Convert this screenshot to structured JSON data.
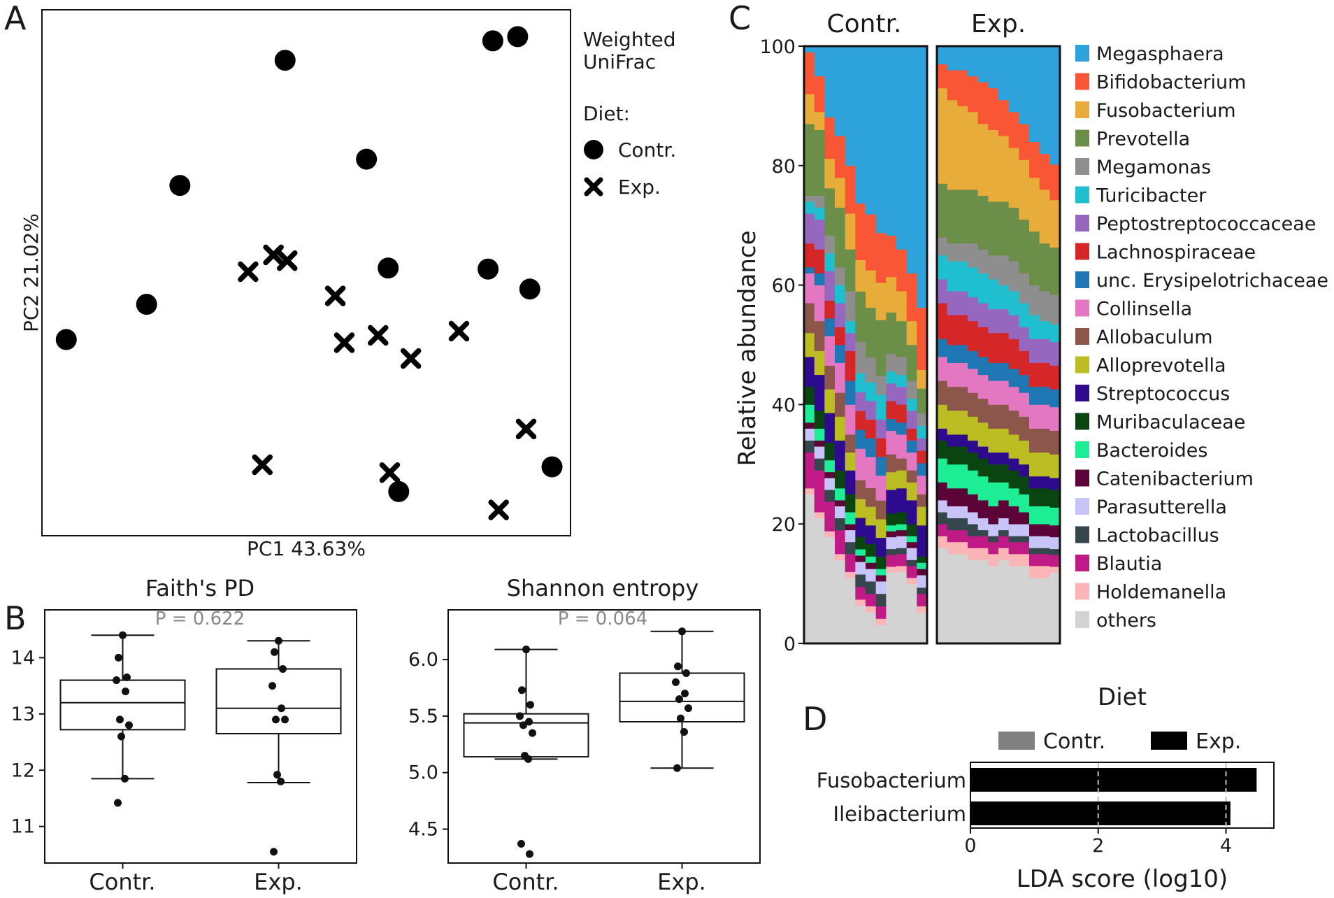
{
  "panel_letters": [
    "A",
    "B",
    "C",
    "D"
  ],
  "chart_data": [
    {
      "id": "pcoa",
      "type": "scatter",
      "title": "Weighted UniFrac",
      "xlabel": "PC1 43.63%",
      "ylabel": "PC2 21.02%",
      "legend": {
        "title": "Diet:",
        "entries": [
          "Contr.",
          "Exp."
        ],
        "title_lines": [
          "Weighted",
          "UniFrac"
        ]
      },
      "xlim": [
        0,
        100
      ],
      "ylim": [
        0,
        100
      ],
      "series": [
        {
          "name": "Contr.",
          "marker": "circle",
          "points": [
            [
              4.6,
              37.3
            ],
            [
              19.8,
              44.0
            ],
            [
              26.1,
              66.6
            ],
            [
              46.0,
              90.4
            ],
            [
              61.4,
              71.6
            ],
            [
              65.5,
              50.9
            ],
            [
              67.5,
              8.4
            ],
            [
              84.4,
              50.7
            ],
            [
              85.3,
              94.1
            ],
            [
              90.0,
              94.9
            ],
            [
              92.3,
              46.9
            ],
            [
              96.5,
              13.1
            ]
          ]
        },
        {
          "name": "Exp.",
          "marker": "x",
          "points": [
            [
              39.0,
              50.2
            ],
            [
              43.8,
              53.4
            ],
            [
              46.4,
              52.3
            ],
            [
              55.5,
              45.6
            ],
            [
              57.2,
              36.7
            ],
            [
              63.6,
              38.1
            ],
            [
              41.7,
              13.5
            ],
            [
              65.8,
              12.0
            ],
            [
              69.8,
              33.7
            ],
            [
              78.9,
              38.9
            ],
            [
              91.6,
              20.3
            ],
            [
              86.4,
              4.9
            ]
          ]
        }
      ]
    },
    {
      "id": "faith",
      "type": "box",
      "title": "Faith's PD",
      "pvalue": "P = 0.622",
      "categories": [
        "Contr.",
        "Exp."
      ],
      "ylim": [
        10.35,
        14.85
      ],
      "yticks": [
        11,
        12,
        13,
        14
      ],
      "boxes": [
        {
          "whisker_low": 11.85,
          "q1": 12.72,
          "median": 13.2,
          "q3": 13.6,
          "whisker_high": 14.4,
          "points": [
            14.4,
            14.0,
            13.65,
            13.6,
            13.4,
            12.9,
            12.8,
            12.6,
            11.85,
            11.42
          ]
        },
        {
          "whisker_low": 11.78,
          "q1": 12.65,
          "median": 13.1,
          "q3": 13.8,
          "whisker_high": 14.3,
          "points": [
            14.3,
            14.1,
            13.8,
            13.5,
            13.1,
            12.9,
            12.9,
            11.92,
            11.8,
            10.55
          ]
        }
      ]
    },
    {
      "id": "shannon",
      "type": "box",
      "title": "Shannon entropy",
      "pvalue": "P = 0.064",
      "categories": [
        "Contr.",
        "Exp."
      ],
      "ylim": [
        4.2,
        6.44
      ],
      "yticks": [
        4.5,
        5.0,
        5.5,
        6.0
      ],
      "boxes": [
        {
          "whisker_low": 5.12,
          "q1": 5.14,
          "median": 5.44,
          "q3": 5.52,
          "whisker_high": 6.09,
          "points": [
            6.09,
            5.73,
            5.6,
            5.5,
            5.45,
            5.42,
            5.35,
            5.15,
            5.12,
            4.37,
            4.28
          ]
        },
        {
          "whisker_low": 5.04,
          "q1": 5.45,
          "median": 5.63,
          "q3": 5.88,
          "whisker_high": 6.25,
          "points": [
            6.25,
            5.94,
            5.88,
            5.8,
            5.7,
            5.65,
            5.57,
            5.48,
            5.36,
            5.04
          ]
        }
      ]
    },
    {
      "id": "taxa",
      "type": "stacked_bar",
      "ylabel": "Relative abundance",
      "ylim": [
        0,
        100
      ],
      "yticks": [
        0,
        20,
        40,
        60,
        80,
        100
      ],
      "groups": [
        "Contr.",
        "Exp."
      ],
      "taxa": [
        {
          "name": "Megasphaera",
          "color": "#2ea3db"
        },
        {
          "name": "Bifidobacterium",
          "color": "#f85634"
        },
        {
          "name": "Fusobacterium",
          "color": "#e8ac3a"
        },
        {
          "name": "Prevotella",
          "color": "#6b8f48"
        },
        {
          "name": "Megamonas",
          "color": "#8e8e8e"
        },
        {
          "name": "Turicibacter",
          "color": "#1fbfd0"
        },
        {
          "name": "Peptostreptococcaceae",
          "color": "#9567be"
        },
        {
          "name": "Lachnospiraceae",
          "color": "#d62728"
        },
        {
          "name": "unc. Erysipelotrichaceae",
          "color": "#1f77b4"
        },
        {
          "name": "Collinsella",
          "color": "#e377c2"
        },
        {
          "name": "Allobaculum",
          "color": "#8c564b"
        },
        {
          "name": "Alloprevotella",
          "color": "#bcbd22"
        },
        {
          "name": "Streptococcus",
          "color": "#2d0a8e"
        },
        {
          "name": "Muribaculaceae",
          "color": "#0a4410"
        },
        {
          "name": "Bacteroides",
          "color": "#1ded95"
        },
        {
          "name": "Catenibacterium",
          "color": "#5c0437"
        },
        {
          "name": "Parasutterella",
          "color": "#c9c4f7"
        },
        {
          "name": "Lactobacillus",
          "color": "#35464c"
        },
        {
          "name": "Blautia",
          "color": "#bf1a85"
        },
        {
          "name": "Holdemanella",
          "color": "#fbb5b6"
        },
        {
          "name": "others",
          "color": "#d3d3d3"
        }
      ],
      "samples": {
        "Contr.": [
          [
            1,
            7,
            5,
            12,
            1,
            2,
            5,
            4,
            1,
            5,
            5,
            4,
            5,
            3,
            3,
            1,
            2,
            2,
            6,
            1,
            25
          ],
          [
            5,
            6,
            3,
            11,
            2,
            2,
            5,
            4,
            2,
            6,
            5,
            4,
            6,
            3,
            2,
            1,
            2,
            2,
            7,
            1,
            21
          ],
          [
            12,
            7,
            5,
            8,
            3,
            3,
            5,
            3,
            3,
            5,
            4,
            4,
            5,
            3,
            2,
            1,
            2,
            2,
            5,
            1,
            18
          ],
          [
            15,
            7,
            5,
            10,
            3,
            3,
            4,
            3,
            3,
            5,
            4,
            4,
            5,
            3,
            2,
            1,
            2,
            2,
            4,
            1,
            14
          ],
          [
            20,
            8,
            6,
            7,
            5,
            2,
            3,
            5,
            4,
            5,
            3,
            3,
            4,
            3,
            2,
            1,
            2,
            2,
            3,
            1,
            11
          ],
          [
            25,
            9,
            5,
            8,
            5,
            3,
            3,
            3,
            3,
            5,
            3,
            3,
            3,
            2,
            1,
            1,
            2,
            2,
            2,
            1,
            6
          ],
          [
            27,
            9,
            6,
            8,
            4,
            3,
            3,
            3,
            3,
            5,
            3,
            3,
            3,
            2,
            1,
            1,
            2,
            2,
            2,
            1,
            5
          ],
          [
            30,
            8,
            6,
            9,
            3,
            4,
            3,
            3,
            3,
            4,
            3,
            3,
            3,
            2,
            1,
            1,
            2,
            2,
            2,
            1,
            3
          ],
          [
            32,
            7,
            6,
            7,
            3,
            2,
            3,
            3,
            2,
            4,
            3,
            3,
            4,
            2,
            1,
            1,
            2,
            1,
            2,
            1,
            12
          ],
          [
            34,
            7,
            5,
            6,
            3,
            2,
            3,
            3,
            2,
            4,
            2,
            3,
            4,
            2,
            1,
            1,
            2,
            1,
            2,
            1,
            12
          ],
          [
            38,
            8,
            4,
            6,
            3,
            2,
            3,
            2,
            2,
            3,
            2,
            3,
            4,
            2,
            1,
            1,
            2,
            1,
            2,
            1,
            10
          ],
          [
            42,
            10,
            3,
            4,
            2,
            2,
            2,
            2,
            2,
            3,
            2,
            3,
            5,
            1,
            1,
            1,
            2,
            1,
            2,
            1,
            5
          ]
        ],
        "Exp.": [
          [
            3,
            4,
            16,
            9,
            3,
            4,
            4,
            6,
            3,
            4,
            4,
            4,
            2,
            3,
            4,
            3,
            2,
            2,
            2,
            2,
            16
          ],
          [
            4,
            5,
            15,
            9,
            3,
            5,
            4,
            5,
            3,
            4,
            4,
            4,
            2,
            3,
            4,
            3,
            2,
            2,
            2,
            2,
            15
          ],
          [
            4,
            6,
            14,
            9,
            3,
            5,
            4,
            5,
            3,
            4,
            4,
            4,
            2,
            3,
            4,
            3,
            2,
            2,
            2,
            2,
            15
          ],
          [
            5,
            6,
            13,
            9,
            4,
            5,
            4,
            5,
            3,
            4,
            4,
            4,
            2,
            3,
            4,
            3,
            2,
            2,
            2,
            2,
            14
          ],
          [
            6,
            7,
            12,
            9,
            4,
            5,
            4,
            5,
            3,
            4,
            4,
            4,
            2,
            3,
            4,
            3,
            2,
            1,
            2,
            2,
            14
          ],
          [
            7,
            7,
            12,
            9,
            4,
            5,
            4,
            5,
            3,
            4,
            4,
            4,
            2,
            3,
            4,
            3,
            2,
            1,
            2,
            2,
            13
          ],
          [
            9,
            6,
            11,
            9,
            5,
            4,
            4,
            5,
            3,
            4,
            4,
            4,
            2,
            3,
            3,
            3,
            2,
            1,
            2,
            2,
            14
          ],
          [
            11,
            6,
            10,
            9,
            5,
            4,
            4,
            5,
            3,
            4,
            4,
            4,
            2,
            3,
            3,
            3,
            2,
            1,
            2,
            2,
            13
          ],
          [
            13,
            6,
            10,
            9,
            5,
            4,
            4,
            4,
            3,
            4,
            4,
            4,
            2,
            3,
            3,
            2,
            2,
            1,
            2,
            2,
            13
          ],
          [
            16,
            6,
            9,
            9,
            5,
            4,
            4,
            4,
            3,
            4,
            4,
            4,
            2,
            3,
            3,
            2,
            2,
            1,
            2,
            2,
            11
          ],
          [
            18,
            6,
            9,
            8,
            5,
            3,
            4,
            4,
            3,
            4,
            4,
            4,
            2,
            3,
            3,
            2,
            2,
            1,
            2,
            2,
            11
          ],
          [
            20,
            6,
            8,
            8,
            5,
            3,
            4,
            4,
            3,
            4,
            4,
            4,
            2,
            3,
            3,
            2,
            2,
            1,
            2,
            1,
            12
          ]
        ]
      }
    },
    {
      "id": "lefse",
      "type": "bar",
      "orientation": "horizontal",
      "title": "Diet",
      "legend": [
        "Contr.",
        "Exp."
      ],
      "legend_colors": [
        "#808080",
        "#000000"
      ],
      "xlabel": "LDA score (log10)",
      "xlim": [
        0,
        4.75
      ],
      "xticks": [
        0,
        2,
        4
      ],
      "categories": [
        "Fusobacterium",
        "Ileibacterium"
      ],
      "values": [
        4.48,
        4.07
      ],
      "group": [
        "Exp.",
        "Exp."
      ]
    }
  ]
}
